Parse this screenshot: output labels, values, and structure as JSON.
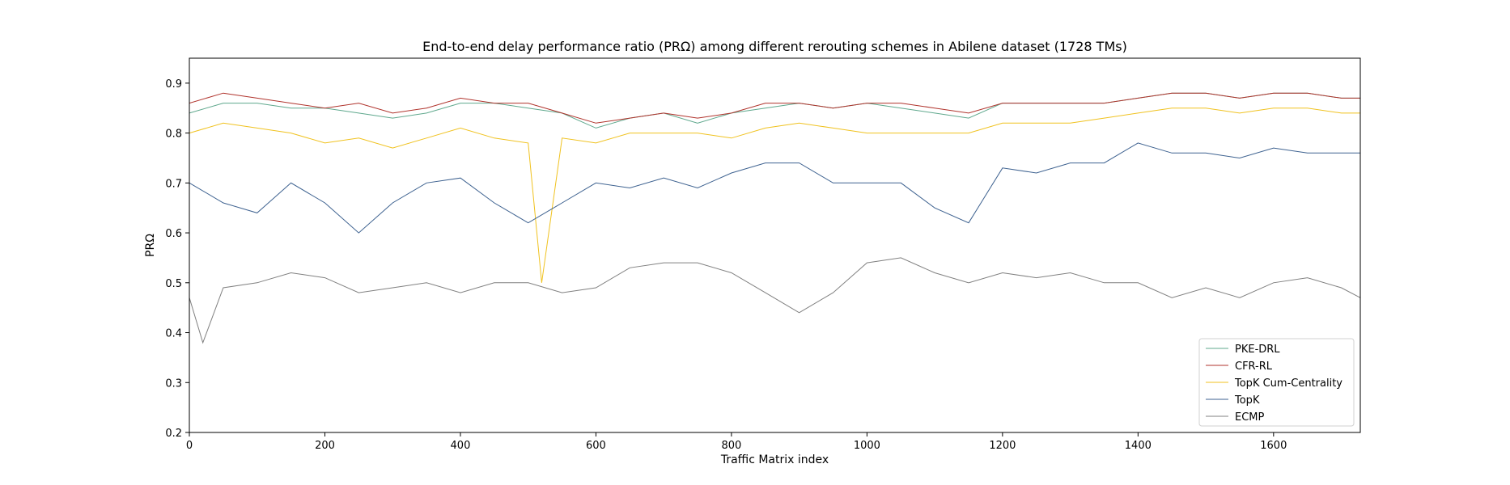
{
  "chart_data": {
    "type": "line",
    "title": "End-to-end delay performance ratio (PRΩ) among different rerouting schemes in Abilene dataset (1728 TMs)",
    "xlabel": "Traffic Matrix index",
    "ylabel": "PRΩ",
    "xlim": [
      0,
      1728
    ],
    "ylim": [
      0.2,
      0.95
    ],
    "xticks": [
      0,
      200,
      400,
      600,
      800,
      1000,
      1200,
      1400,
      1600
    ],
    "yticks": [
      0.2,
      0.3,
      0.4,
      0.5,
      0.6,
      0.7,
      0.8,
      0.9
    ],
    "grid": false,
    "legend_position": "lower-right",
    "series": [
      {
        "name": "PKE-DRL",
        "color": "#5fa88d",
        "x": [
          0,
          50,
          100,
          150,
          200,
          250,
          300,
          350,
          400,
          450,
          500,
          550,
          600,
          650,
          700,
          750,
          800,
          850,
          900,
          950,
          1000,
          1050,
          1100,
          1150,
          1200,
          1250,
          1300,
          1350,
          1400,
          1450,
          1500,
          1550,
          1600,
          1650,
          1700,
          1728
        ],
        "values": [
          0.84,
          0.86,
          0.86,
          0.85,
          0.85,
          0.84,
          0.83,
          0.84,
          0.86,
          0.86,
          0.85,
          0.84,
          0.81,
          0.83,
          0.84,
          0.82,
          0.84,
          0.85,
          0.86,
          0.85,
          0.86,
          0.85,
          0.84,
          0.83,
          0.86,
          0.86,
          0.86,
          0.86,
          0.87,
          0.88,
          0.88,
          0.87,
          0.88,
          0.88,
          0.87,
          0.87
        ]
      },
      {
        "name": "CFR-RL",
        "color": "#b0332c",
        "x": [
          0,
          50,
          100,
          150,
          200,
          250,
          300,
          350,
          400,
          450,
          500,
          550,
          600,
          650,
          700,
          750,
          800,
          850,
          900,
          950,
          1000,
          1050,
          1100,
          1150,
          1200,
          1250,
          1300,
          1350,
          1400,
          1450,
          1500,
          1550,
          1600,
          1650,
          1700,
          1728
        ],
        "values": [
          0.86,
          0.88,
          0.87,
          0.86,
          0.85,
          0.86,
          0.84,
          0.85,
          0.87,
          0.86,
          0.86,
          0.84,
          0.82,
          0.83,
          0.84,
          0.83,
          0.84,
          0.86,
          0.86,
          0.85,
          0.86,
          0.86,
          0.85,
          0.84,
          0.86,
          0.86,
          0.86,
          0.86,
          0.87,
          0.88,
          0.88,
          0.87,
          0.88,
          0.88,
          0.87,
          0.87
        ]
      },
      {
        "name": "TopK Cum-Centrality",
        "color": "#f0c21f",
        "x": [
          0,
          50,
          100,
          150,
          200,
          250,
          300,
          350,
          400,
          450,
          500,
          520,
          550,
          600,
          650,
          700,
          750,
          800,
          850,
          900,
          950,
          1000,
          1050,
          1100,
          1150,
          1200,
          1250,
          1300,
          1350,
          1400,
          1450,
          1500,
          1550,
          1600,
          1650,
          1700,
          1728
        ],
        "values": [
          0.8,
          0.82,
          0.81,
          0.8,
          0.78,
          0.79,
          0.77,
          0.79,
          0.81,
          0.79,
          0.78,
          0.5,
          0.79,
          0.78,
          0.8,
          0.8,
          0.8,
          0.79,
          0.81,
          0.82,
          0.81,
          0.8,
          0.8,
          0.8,
          0.8,
          0.82,
          0.82,
          0.82,
          0.83,
          0.84,
          0.85,
          0.85,
          0.84,
          0.85,
          0.85,
          0.84,
          0.84
        ]
      },
      {
        "name": "TopK",
        "color": "#3e6290",
        "x": [
          0,
          50,
          100,
          150,
          200,
          250,
          300,
          350,
          400,
          450,
          500,
          550,
          600,
          650,
          700,
          750,
          800,
          850,
          900,
          950,
          1000,
          1050,
          1100,
          1150,
          1200,
          1250,
          1300,
          1350,
          1400,
          1450,
          1500,
          1550,
          1600,
          1650,
          1700,
          1728
        ],
        "values": [
          0.7,
          0.66,
          0.64,
          0.7,
          0.66,
          0.6,
          0.66,
          0.7,
          0.71,
          0.66,
          0.62,
          0.66,
          0.7,
          0.69,
          0.71,
          0.69,
          0.72,
          0.74,
          0.74,
          0.7,
          0.7,
          0.7,
          0.65,
          0.62,
          0.73,
          0.72,
          0.74,
          0.74,
          0.78,
          0.76,
          0.76,
          0.75,
          0.77,
          0.76,
          0.76,
          0.76
        ]
      },
      {
        "name": "ECMP",
        "color": "#808080",
        "x": [
          0,
          20,
          50,
          100,
          150,
          200,
          250,
          300,
          350,
          400,
          450,
          500,
          550,
          600,
          650,
          700,
          750,
          800,
          850,
          900,
          950,
          1000,
          1050,
          1100,
          1150,
          1200,
          1250,
          1300,
          1350,
          1400,
          1450,
          1500,
          1550,
          1600,
          1650,
          1700,
          1728
        ],
        "values": [
          0.47,
          0.38,
          0.49,
          0.5,
          0.52,
          0.51,
          0.48,
          0.49,
          0.5,
          0.48,
          0.5,
          0.5,
          0.48,
          0.49,
          0.53,
          0.54,
          0.54,
          0.52,
          0.48,
          0.44,
          0.48,
          0.54,
          0.55,
          0.52,
          0.5,
          0.52,
          0.51,
          0.52,
          0.5,
          0.5,
          0.47,
          0.49,
          0.47,
          0.5,
          0.51,
          0.49,
          0.47
        ]
      }
    ]
  }
}
